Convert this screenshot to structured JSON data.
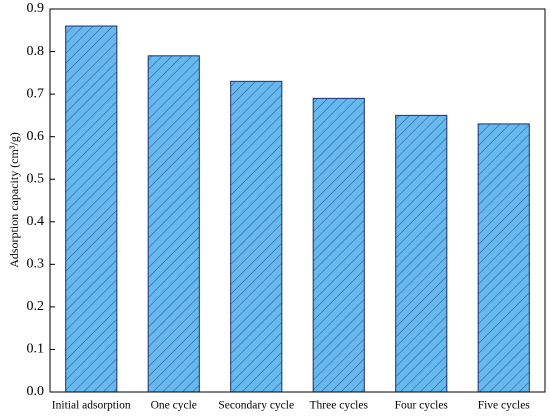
{
  "chart_data": {
    "type": "bar",
    "y_label": "Adsorption capacity (cm³/g)",
    "categories": [
      "Initial adsorption",
      "One cycle",
      "Secondary cycle",
      "Three cycles",
      "Four cycles",
      "Five cycles"
    ],
    "values": [
      0.86,
      0.79,
      0.73,
      0.69,
      0.65,
      0.63
    ],
    "color": "#66b9ee",
    "edge_color": "#1f2f6b",
    "hatch": "///",
    "ylim": [
      0,
      0.9
    ],
    "yticks": [
      {
        "value": 0,
        "label": "0.0"
      },
      0.1,
      0.2,
      0.3,
      0.4,
      0.5,
      0.6,
      0.7,
      0.8,
      0.9
    ],
    "grid": false
  }
}
